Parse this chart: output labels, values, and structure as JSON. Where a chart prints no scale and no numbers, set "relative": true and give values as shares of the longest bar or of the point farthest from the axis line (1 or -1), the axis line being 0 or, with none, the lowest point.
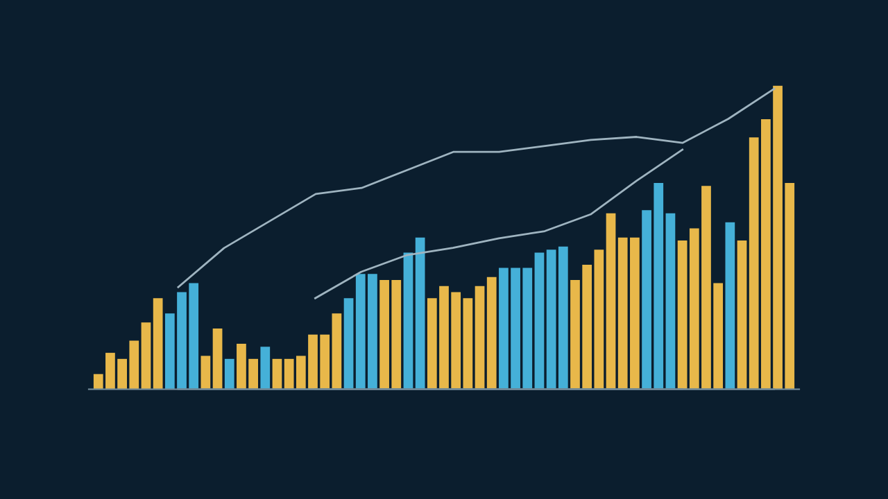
{
  "chart_data": [
    {
      "type": "bar",
      "relative": true,
      "grid": false,
      "legend": false,
      "categories": [
        null,
        null,
        null,
        null,
        null,
        null,
        null,
        null,
        null,
        null,
        null,
        null,
        null,
        null,
        null,
        null,
        null,
        null,
        null,
        null,
        null,
        null,
        null,
        null,
        null,
        null,
        null,
        null,
        null,
        null,
        null,
        null,
        null,
        null,
        null,
        null,
        null,
        null,
        null,
        null,
        null,
        null,
        null,
        null,
        null,
        null,
        null,
        null,
        null,
        null,
        null,
        null,
        null,
        null,
        null,
        null,
        null,
        null,
        null
      ],
      "values": [
        0.05,
        0.12,
        0.1,
        0.16,
        0.22,
        0.3,
        0.25,
        0.32,
        0.35,
        0.11,
        0.2,
        0.1,
        0.15,
        0.1,
        0.14,
        0.1,
        0.1,
        0.11,
        0.18,
        0.18,
        0.25,
        0.3,
        0.38,
        0.38,
        0.36,
        0.36,
        0.45,
        0.5,
        0.3,
        0.34,
        0.32,
        0.3,
        0.34,
        0.37,
        0.4,
        0.4,
        0.4,
        0.45,
        0.46,
        0.47,
        0.36,
        0.41,
        0.46,
        0.58,
        0.5,
        0.5,
        0.59,
        0.68,
        0.58,
        0.49,
        0.53,
        0.67,
        0.35,
        0.55,
        0.49,
        0.83,
        0.89,
        1,
        0.68
      ],
      "colors": [
        "#e8b84a",
        "#e8b84a",
        "#e8b84a",
        "#e8b84a",
        "#e8b84a",
        "#e8b84a",
        "#45b0d8",
        "#45b0d8",
        "#45b0d8",
        "#e8b84a",
        "#e8b84a",
        "#45b0d8",
        "#e8b84a",
        "#e8b84a",
        "#45b0d8",
        "#e8b84a",
        "#e8b84a",
        "#e8b84a",
        "#e8b84a",
        "#e8b84a",
        "#e8b84a",
        "#45b0d8",
        "#45b0d8",
        "#45b0d8",
        "#e8b84a",
        "#e8b84a",
        "#45b0d8",
        "#45b0d8",
        "#e8b84a",
        "#e8b84a",
        "#e8b84a",
        "#e8b84a",
        "#e8b84a",
        "#e8b84a",
        "#45b0d8",
        "#45b0d8",
        "#45b0d8",
        "#45b0d8",
        "#45b0d8",
        "#45b0d8",
        "#e8b84a",
        "#e8b84a",
        "#e8b84a",
        "#e8b84a",
        "#e8b84a",
        "#e8b84a",
        "#45b0d8",
        "#45b0d8",
        "#45b0d8",
        "#e8b84a",
        "#e8b84a",
        "#e8b84a",
        "#e8b84a",
        "#45b0d8",
        "#e8b84a",
        "#e8b84a",
        "#e8b84a",
        "#e8b84a",
        "#e8b84a"
      ]
    },
    {
      "type": "line",
      "relative": true,
      "grid": false,
      "legend": false,
      "marker": "none",
      "line_style": "solid",
      "categories": [
        null,
        null,
        null,
        null,
        null,
        null,
        null,
        null,
        null,
        null,
        null,
        null,
        null,
        null
      ],
      "series": [
        {
          "color": "#9fb4c0",
          "values": [
            0.34,
            0.47,
            0.56,
            0.65,
            0.67,
            0.73,
            0.79,
            0.79,
            0.81,
            0.83,
            0.84,
            0.82,
            0.9,
            1
          ]
        }
      ]
    },
    {
      "type": "line",
      "relative": true,
      "grid": false,
      "legend": false,
      "marker": "none",
      "line_style": "solid",
      "categories": [
        null,
        null,
        null,
        null,
        null,
        null,
        null,
        null,
        null
      ],
      "series": [
        {
          "color": "#9fb4c0",
          "values": [
            0.38,
            0.49,
            0.56,
            0.59,
            0.63,
            0.66,
            0.73,
            0.87,
            1
          ]
        }
      ]
    }
  ]
}
